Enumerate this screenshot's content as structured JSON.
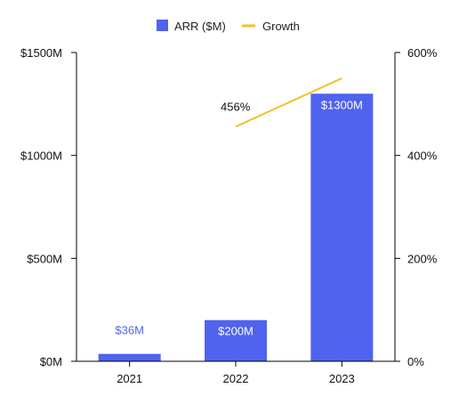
{
  "chart_data": {
    "type": "bar",
    "categories": [
      "2021",
      "2022",
      "2023"
    ],
    "series": [
      {
        "name": "ARR ($M)",
        "kind": "bar",
        "axis": "left",
        "color": "#4f63ee",
        "values": [
          36,
          200,
          1300
        ],
        "labels": [
          "$36M",
          "$200M",
          "$1300M"
        ]
      },
      {
        "name": "Growth",
        "kind": "line",
        "axis": "right",
        "color": "#f2c12e",
        "values": [
          null,
          456,
          550
        ],
        "labels": [
          null,
          "456%",
          null
        ]
      }
    ],
    "y_left": {
      "ylim": [
        0,
        1500
      ],
      "ticks": [
        0,
        500,
        1000,
        1500
      ],
      "tick_labels": [
        "$0M",
        "$500M",
        "$1000M",
        "$1500M"
      ]
    },
    "y_right": {
      "ylim": [
        0,
        600
      ],
      "ticks": [
        0,
        200,
        400,
        600
      ],
      "tick_labels": [
        "0%",
        "200%",
        "400%",
        "600%"
      ]
    },
    "legend": {
      "position": "top-center",
      "items": [
        "ARR ($M)",
        "Growth"
      ]
    },
    "grid": false,
    "title": "",
    "xlabel": "",
    "ylabel": ""
  }
}
